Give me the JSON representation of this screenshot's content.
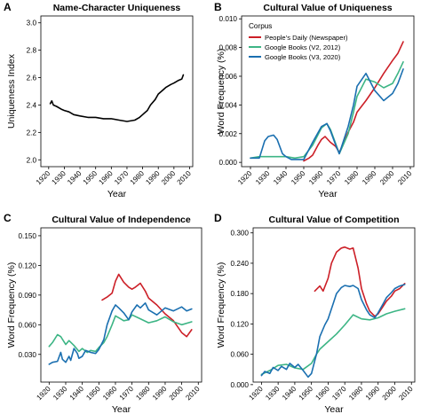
{
  "chart_data": [
    {
      "panel": "A",
      "type": "line",
      "title": "Name-Character Uniqueness",
      "xlabel": "Year",
      "ylabel": "Uniqueness Index",
      "xlim": [
        1915,
        2012
      ],
      "ylim": [
        1.95,
        3.05
      ],
      "xticks": [
        1920,
        1930,
        1940,
        1950,
        1960,
        1970,
        1980,
        1990,
        2000,
        2010
      ],
      "yticks": [
        2.0,
        2.2,
        2.4,
        2.6,
        2.8,
        3.0
      ],
      "ytick_labels": [
        "2.0",
        "2.2",
        "2.4",
        "2.6",
        "2.8",
        "3.0"
      ],
      "series": [
        {
          "color": "#000000",
          "x": [
            1921,
            1922,
            1923,
            1925,
            1928,
            1930,
            1933,
            1936,
            1940,
            1945,
            1950,
            1955,
            1960,
            1965,
            1970,
            1975,
            1978,
            1980,
            1983,
            1985,
            1988,
            1990,
            1993,
            1995,
            1998,
            2000,
            2003,
            2005,
            2006
          ],
          "y": [
            2.41,
            2.43,
            2.4,
            2.39,
            2.37,
            2.36,
            2.35,
            2.33,
            2.32,
            2.31,
            2.31,
            2.3,
            2.3,
            2.29,
            2.28,
            2.29,
            2.31,
            2.33,
            2.36,
            2.4,
            2.44,
            2.48,
            2.51,
            2.53,
            2.55,
            2.56,
            2.58,
            2.59,
            2.62
          ]
        }
      ]
    },
    {
      "panel": "B",
      "type": "line",
      "title": "Cultural Value of Uniqueness",
      "xlabel": "Year",
      "ylabel": "Word Frequency (%)",
      "xlim": [
        1915,
        2012
      ],
      "ylim": [
        -0.0003,
        0.0102
      ],
      "xticks": [
        1920,
        1930,
        1940,
        1950,
        1960,
        1970,
        1980,
        1990,
        2000,
        2010
      ],
      "yticks": [
        0.0,
        0.002,
        0.004,
        0.006,
        0.008,
        0.01
      ],
      "ytick_labels": [
        "0.000",
        "0.002",
        "0.004",
        "0.006",
        "0.008",
        "0.010"
      ],
      "legend": {
        "title": "Corpus",
        "position": "top-left",
        "entries": [
          "People’s Daily (Newspaper)",
          "Google Books (V2, 2012)",
          "Google Books (V3, 2020)"
        ]
      },
      "series": [
        {
          "name": "People’s Daily (Newspaper)",
          "color": "#cc1f27",
          "x": [
            1950,
            1953,
            1955,
            1958,
            1960,
            1962,
            1965,
            1968,
            1970,
            1972,
            1975,
            1978,
            1980,
            1985,
            1990,
            1995,
            2000,
            2003,
            2006
          ],
          "y": [
            0.0001,
            0.0003,
            0.0005,
            0.0012,
            0.0016,
            0.0018,
            0.0014,
            0.0011,
            0.0007,
            0.0012,
            0.0021,
            0.0028,
            0.0035,
            0.0043,
            0.0052,
            0.0062,
            0.0071,
            0.0076,
            0.0084
          ]
        },
        {
          "name": "Google Books (V2, 2012)",
          "color": "#3db585",
          "x": [
            1920,
            1925,
            1930,
            1935,
            1940,
            1945,
            1950,
            1955,
            1960,
            1963,
            1965,
            1968,
            1970,
            1975,
            1978,
            1980,
            1985,
            1990,
            1995,
            2000,
            2003,
            2006
          ],
          "y": [
            0.0003,
            0.0004,
            0.0004,
            0.0004,
            0.0004,
            0.0003,
            0.0004,
            0.0012,
            0.0024,
            0.0027,
            0.0023,
            0.0013,
            0.0006,
            0.002,
            0.0035,
            0.0046,
            0.0058,
            0.0056,
            0.0052,
            0.0055,
            0.0062,
            0.007
          ]
        },
        {
          "name": "Google Books (V3, 2020)",
          "color": "#1a6fb0",
          "x": [
            1920,
            1925,
            1928,
            1930,
            1933,
            1935,
            1938,
            1940,
            1943,
            1945,
            1948,
            1950,
            1955,
            1960,
            1963,
            1965,
            1968,
            1970,
            1975,
            1978,
            1980,
            1985,
            1990,
            1995,
            2000,
            2003,
            2006
          ],
          "y": [
            0.0003,
            0.0003,
            0.0015,
            0.0018,
            0.0019,
            0.0016,
            0.0006,
            0.0004,
            0.0002,
            0.0002,
            0.0002,
            0.0002,
            0.0014,
            0.0025,
            0.0027,
            0.0022,
            0.0012,
            0.0006,
            0.0025,
            0.004,
            0.0053,
            0.0062,
            0.005,
            0.0043,
            0.0048,
            0.0055,
            0.0065
          ]
        }
      ]
    },
    {
      "panel": "C",
      "type": "line",
      "title": "Cultural Value of Independence",
      "xlabel": "Year",
      "ylabel": "Word Frequency (%)",
      "xlim": [
        1915,
        2012
      ],
      "ylim": [
        0.002,
        0.158
      ],
      "xticks": [
        1920,
        1930,
        1940,
        1950,
        1960,
        1970,
        1980,
        1990,
        2000,
        2010
      ],
      "yticks": [
        0.03,
        0.06,
        0.09,
        0.12,
        0.15
      ],
      "ytick_labels": [
        "0.030",
        "0.060",
        "0.090",
        "0.120",
        "0.150"
      ],
      "series": [
        {
          "name": "People’s Daily (Newspaper)",
          "color": "#cc1f27",
          "x": [
            1952,
            1955,
            1958,
            1960,
            1962,
            1965,
            1968,
            1970,
            1972,
            1975,
            1978,
            1980,
            1985,
            1990,
            1995,
            2000,
            2003,
            2006
          ],
          "y": [
            0.085,
            0.088,
            0.092,
            0.104,
            0.111,
            0.103,
            0.098,
            0.096,
            0.098,
            0.102,
            0.094,
            0.087,
            0.08,
            0.071,
            0.064,
            0.052,
            0.048,
            0.055
          ]
        },
        {
          "name": "Google Books (V2, 2012)",
          "color": "#3db585",
          "x": [
            1920,
            1922,
            1925,
            1927,
            1930,
            1932,
            1935,
            1938,
            1940,
            1943,
            1945,
            1948,
            1950,
            1953,
            1955,
            1958,
            1960,
            1963,
            1965,
            1968,
            1970,
            1975,
            1980,
            1985,
            1990,
            1995,
            2000,
            2006
          ],
          "y": [
            0.038,
            0.042,
            0.05,
            0.048,
            0.04,
            0.044,
            0.039,
            0.033,
            0.036,
            0.032,
            0.034,
            0.033,
            0.037,
            0.042,
            0.048,
            0.06,
            0.069,
            0.066,
            0.064,
            0.065,
            0.07,
            0.066,
            0.062,
            0.064,
            0.068,
            0.063,
            0.06,
            0.063
          ]
        },
        {
          "name": "Google Books (V3, 2020)",
          "color": "#1a6fb0",
          "x": [
            1920,
            1922,
            1925,
            1927,
            1928,
            1930,
            1932,
            1933,
            1935,
            1937,
            1938,
            1940,
            1942,
            1945,
            1948,
            1950,
            1953,
            1955,
            1958,
            1960,
            1962,
            1965,
            1968,
            1970,
            1973,
            1975,
            1978,
            1980,
            1985,
            1990,
            1995,
            2000,
            2003,
            2006
          ],
          "y": [
            0.02,
            0.022,
            0.023,
            0.032,
            0.025,
            0.022,
            0.028,
            0.024,
            0.036,
            0.031,
            0.026,
            0.028,
            0.034,
            0.032,
            0.031,
            0.035,
            0.045,
            0.06,
            0.074,
            0.08,
            0.077,
            0.072,
            0.065,
            0.073,
            0.08,
            0.077,
            0.082,
            0.075,
            0.07,
            0.077,
            0.074,
            0.078,
            0.074,
            0.076
          ]
        }
      ]
    },
    {
      "panel": "D",
      "type": "line",
      "title": "Cultural Value of Competition",
      "xlabel": "Year",
      "ylabel": "Word Frequency (%)",
      "xlim": [
        1915,
        2012
      ],
      "ylim": [
        0.005,
        0.31
      ],
      "xticks": [
        1920,
        1930,
        1940,
        1950,
        1960,
        1970,
        1980,
        1990,
        2000,
        2010
      ],
      "yticks": [
        0.0,
        0.06,
        0.12,
        0.18,
        0.24,
        0.3
      ],
      "ytick_labels": [
        "0.000",
        "0.060",
        "0.120",
        "0.180",
        "0.240",
        "0.300"
      ],
      "series": [
        {
          "name": "People’s Daily (Newspaper)",
          "color": "#cc1f27",
          "x": [
            1952,
            1955,
            1957,
            1960,
            1962,
            1965,
            1968,
            1970,
            1973,
            1975,
            1978,
            1980,
            1983,
            1985,
            1988,
            1990,
            1993,
            1995,
            1998,
            2000,
            2003,
            2006
          ],
          "y": [
            0.185,
            0.195,
            0.185,
            0.21,
            0.24,
            0.262,
            0.27,
            0.272,
            0.268,
            0.27,
            0.23,
            0.19,
            0.16,
            0.145,
            0.135,
            0.14,
            0.155,
            0.165,
            0.175,
            0.185,
            0.19,
            0.2
          ]
        },
        {
          "name": "Google Books (V2, 2012)",
          "color": "#3db585",
          "x": [
            1920,
            1925,
            1930,
            1935,
            1940,
            1945,
            1950,
            1953,
            1955,
            1960,
            1965,
            1970,
            1975,
            1980,
            1985,
            1990,
            1995,
            2000,
            2006
          ],
          "y": [
            0.02,
            0.028,
            0.038,
            0.04,
            0.033,
            0.03,
            0.042,
            0.06,
            0.07,
            0.085,
            0.1,
            0.118,
            0.138,
            0.13,
            0.128,
            0.132,
            0.14,
            0.145,
            0.15
          ]
        },
        {
          "name": "Google Books (V3, 2020)",
          "color": "#1a6fb0",
          "x": [
            1920,
            1922,
            1925,
            1927,
            1930,
            1932,
            1935,
            1937,
            1940,
            1942,
            1945,
            1948,
            1950,
            1953,
            1955,
            1958,
            1960,
            1963,
            1965,
            1968,
            1970,
            1973,
            1975,
            1978,
            1980,
            1983,
            1985,
            1988,
            1990,
            1993,
            1995,
            1998,
            2000,
            2003,
            2006
          ],
          "y": [
            0.018,
            0.026,
            0.022,
            0.034,
            0.028,
            0.036,
            0.03,
            0.042,
            0.034,
            0.04,
            0.028,
            0.015,
            0.022,
            0.06,
            0.095,
            0.118,
            0.13,
            0.16,
            0.18,
            0.192,
            0.196,
            0.194,
            0.196,
            0.19,
            0.168,
            0.148,
            0.138,
            0.132,
            0.142,
            0.16,
            0.172,
            0.182,
            0.19,
            0.195,
            0.198
          ]
        }
      ]
    }
  ],
  "panel_labels": [
    "A",
    "B",
    "C",
    "D"
  ]
}
